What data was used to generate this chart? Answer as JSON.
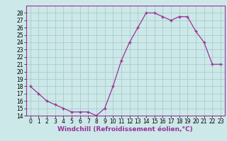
{
  "x": [
    0,
    1,
    2,
    3,
    4,
    5,
    6,
    7,
    8,
    9,
    10,
    11,
    12,
    13,
    14,
    15,
    16,
    17,
    18,
    19,
    20,
    21,
    22,
    23
  ],
  "y": [
    18,
    17,
    16,
    15.5,
    15,
    14.5,
    14.5,
    14.5,
    14,
    15,
    18,
    21.5,
    24,
    26,
    28,
    28,
    27.5,
    27,
    27.5,
    27.5,
    25.5,
    24,
    21,
    21
  ],
  "line_color": "#993399",
  "marker": "+",
  "bg_color": "#cce8e8",
  "grid_color": "#aacccc",
  "xlabel": "Windchill (Refroidissement éolien,°C)",
  "ylim": [
    14,
    29
  ],
  "xlim": [
    -0.5,
    23.5
  ],
  "yticks": [
    14,
    15,
    16,
    17,
    18,
    19,
    20,
    21,
    22,
    23,
    24,
    25,
    26,
    27,
    28
  ],
  "xticks": [
    0,
    1,
    2,
    3,
    4,
    5,
    6,
    7,
    8,
    9,
    10,
    11,
    12,
    13,
    14,
    15,
    16,
    17,
    18,
    19,
    20,
    21,
    22,
    23
  ],
  "tick_label_fontsize": 5.5,
  "xlabel_fontsize": 6.5
}
